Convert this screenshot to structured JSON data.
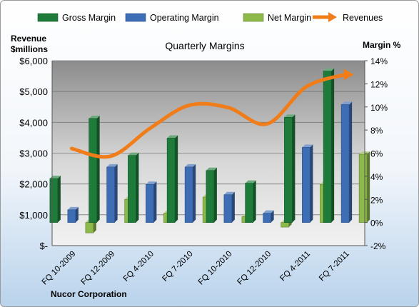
{
  "chart_data": {
    "type": "bar",
    "title": "Quarterly Margins",
    "left_axis_label_line1": "Revenue",
    "left_axis_label_line2": "$millions",
    "right_axis_label": "Margin %",
    "footer": "Nucor Corporation",
    "categories": [
      "FQ 10-2009",
      "FQ 12-2009",
      "FQ 4-2010",
      "FQ 7-2010",
      "FQ 10-2010",
      "FQ 12-2010",
      "FQ 4-2011",
      "FQ 7-2011"
    ],
    "left_axis": {
      "ylim": [
        0,
        6000
      ],
      "ticks": [
        0,
        1000,
        2000,
        3000,
        4000,
        5000,
        6000
      ],
      "tick_labels": [
        "$-",
        "$1,000",
        "$2,000",
        "$3,000",
        "$4,000",
        "$5,000",
        "$6,000"
      ]
    },
    "right_axis": {
      "ylim": [
        -2,
        14
      ],
      "ticks": [
        -2,
        0,
        2,
        4,
        6,
        8,
        10,
        12,
        14
      ],
      "tick_labels": [
        "-2%",
        "0%",
        "2%",
        "4%",
        "6%",
        "8%",
        "10%",
        "12%",
        "14%"
      ]
    },
    "series": [
      {
        "name": "Gross Margin",
        "axis": "right",
        "kind": "bar",
        "color": "#1e7b3a",
        "values": [
          3.8,
          9.0,
          5.8,
          7.3,
          4.5,
          3.4,
          9.1,
          13.1
        ]
      },
      {
        "name": "Operating Margin",
        "axis": "right",
        "kind": "bar",
        "color": "#3d6db5",
        "values": [
          1.1,
          4.8,
          3.3,
          4.8,
          2.4,
          0.8,
          6.5,
          10.2
        ]
      },
      {
        "name": "Net Margin",
        "axis": "right",
        "kind": "bar",
        "color": "#8db84a",
        "values": [
          -0.9,
          2.0,
          0.8,
          2.2,
          0.5,
          -0.4,
          3.3,
          5.9
        ]
      },
      {
        "name": "Revenues",
        "axis": "left",
        "kind": "line",
        "color": "#f07d1a",
        "values": [
          3150,
          2900,
          3800,
          4550,
          4480,
          3950,
          5150,
          5550
        ]
      }
    ],
    "grid": true,
    "legend_position": "top"
  }
}
